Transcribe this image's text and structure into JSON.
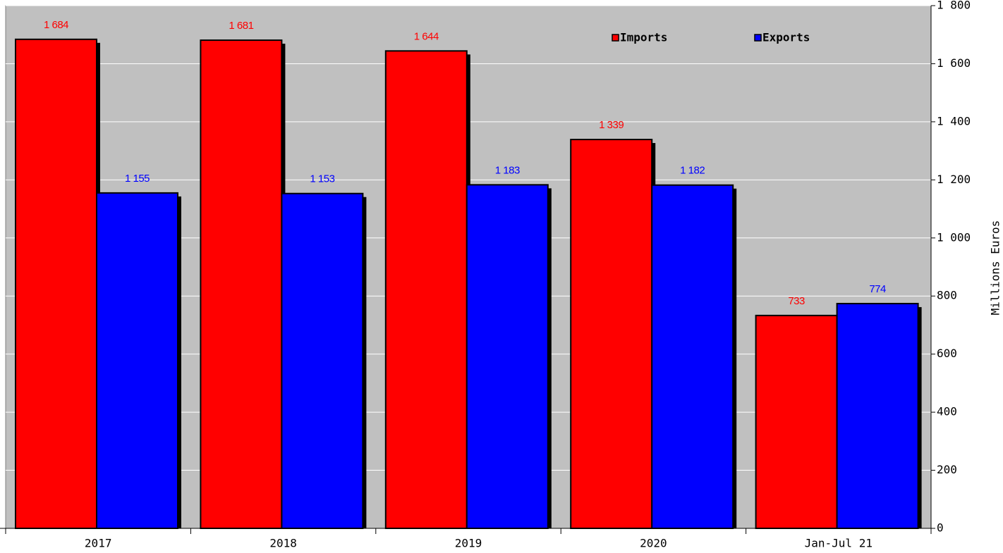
{
  "chart_data": {
    "type": "bar",
    "categories": [
      "2017",
      "2018",
      "2019",
      "2020",
      "Jan-Jul 21"
    ],
    "series": [
      {
        "name": "Imports",
        "color": "#ff0000",
        "values": [
          1684,
          1681,
          1644,
          1339,
          733
        ],
        "value_labels": [
          "1 684",
          "1 681",
          "1 644",
          "1 339",
          "733"
        ]
      },
      {
        "name": "Exports",
        "color": "#0000ff",
        "values": [
          1155,
          1153,
          1183,
          1182,
          774
        ],
        "value_labels": [
          "1 155",
          "1 153",
          "1 183",
          "1 182",
          "774"
        ]
      }
    ],
    "y_label": "Millions Euros",
    "ylim": [
      0,
      1800
    ],
    "yticks": [
      0,
      200,
      400,
      600,
      800,
      {
        "value": 1000,
        "label": "1 000"
      },
      {
        "value": 1200,
        "label": "1 200"
      },
      {
        "value": 1400,
        "label": "1 400"
      },
      {
        "value": 1600,
        "label": "1 600"
      },
      {
        "value": 1800,
        "label": "1 800"
      }
    ],
    "grid": true,
    "legend": "top-right"
  }
}
